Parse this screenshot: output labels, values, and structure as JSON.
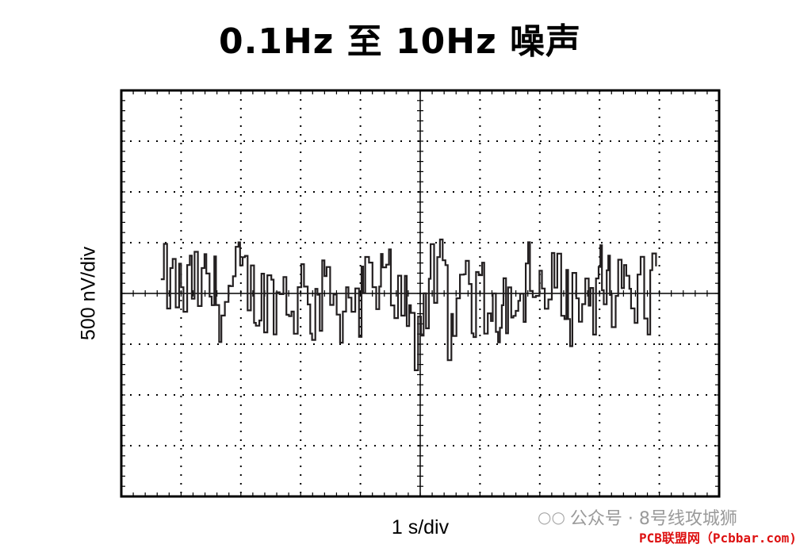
{
  "title": "0.1Hz 至 10Hz 噪声",
  "chart_data": {
    "type": "line",
    "xlabel": "1 s/div",
    "ylabel": "500 nV/div",
    "x_divisions": 10,
    "y_divisions": 8,
    "xlim": [
      0,
      10
    ],
    "ylim": [
      -2000,
      2000
    ],
    "grid": true,
    "trace_color": "#231f20",
    "series": [
      {
        "x": [
          0.0,
          0.2,
          0.4,
          0.6,
          0.8,
          1.0,
          1.2,
          1.4,
          1.6,
          1.8,
          2.0,
          2.2,
          2.4,
          2.6,
          2.8,
          3.0,
          3.2,
          3.4,
          3.6,
          3.8,
          4.0,
          4.2,
          4.4,
          4.6,
          4.8,
          5.0,
          5.2,
          5.4,
          5.6,
          5.8,
          6.0,
          6.2,
          6.4,
          6.6,
          6.8,
          7.0,
          7.2,
          7.4,
          7.6,
          7.8,
          8.0,
          8.2,
          8.4,
          8.6,
          8.8,
          9.0,
          9.2,
          9.4,
          9.6,
          9.8,
          10.0
        ],
        "y": [
          null,
          null,
          null,
          null,
          null,
          null,
          null,
          null,
          null,
          null,
          null,
          null,
          null,
          null,
          null,
          null,
          null,
          null,
          null,
          null,
          null,
          null,
          null,
          null,
          null,
          null,
          null,
          null,
          null,
          null,
          null,
          null,
          null,
          null,
          null,
          null,
          null,
          null,
          null,
          null,
          null,
          null,
          null,
          null,
          null,
          null,
          null,
          null,
          null,
          null,
          null
        ]
      }
    ]
  },
  "watermark": {
    "icon": "wechat-icon",
    "text": "公众号 · 8号线攻城狮"
  },
  "credit": "PCB联盟网（Pcbbar.com)"
}
